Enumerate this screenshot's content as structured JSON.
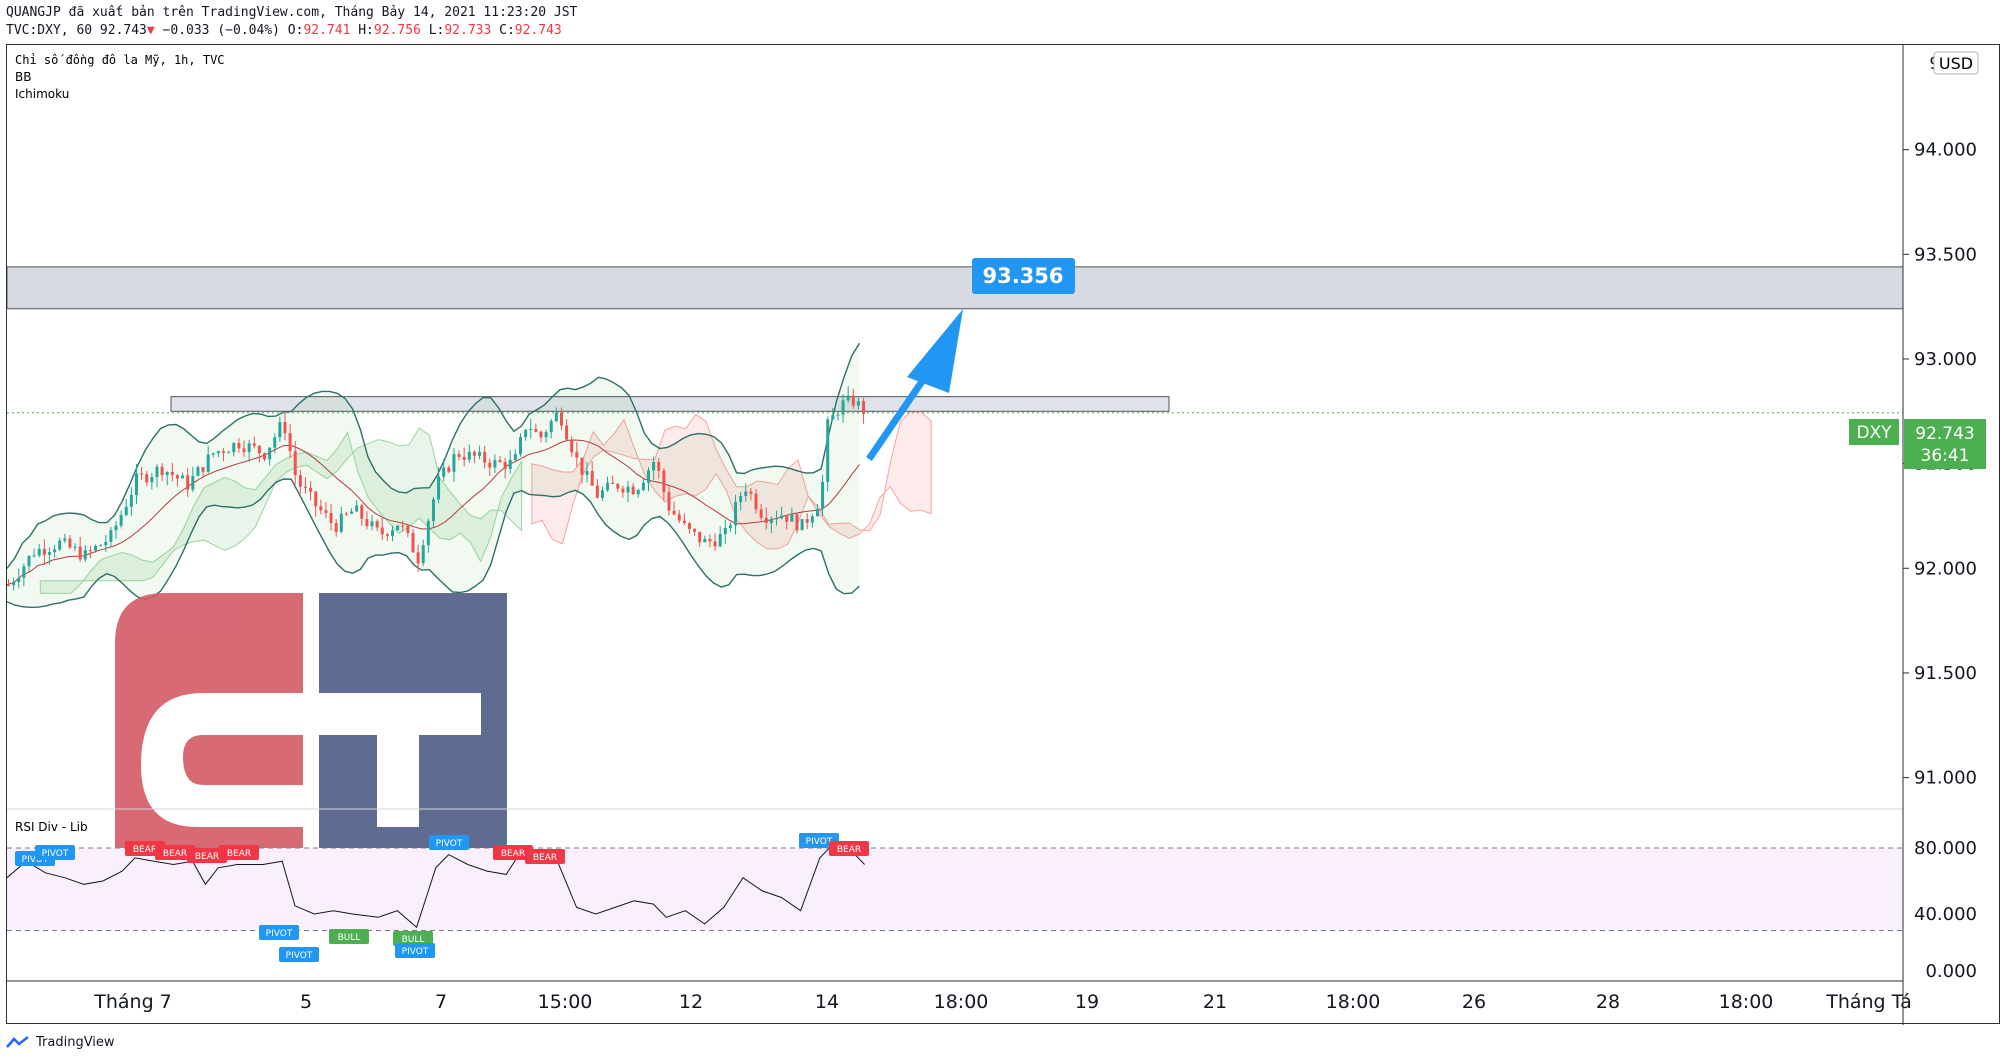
{
  "header": {
    "publish_line": "QUANGJP đã xuất bản trên TradingView.com, Tháng Bảy 14, 2021 11:23:20 JST",
    "symbol_prefix": "TVC:DXY, 60 92.743",
    "arrow": "▼",
    "change": "−0.033 (−0.04%)",
    "o_label": "O:",
    "o_value": "92.741",
    "h_label": "H:",
    "h_value": "92.756",
    "l_label": "L:",
    "l_value": "92.733",
    "c_label": "C:",
    "c_value": "92.743"
  },
  "legend": {
    "title": "Chỉ số đồng đô la Mỹ, 1h, TVC",
    "indicator1": "BB",
    "indicator2": "Ichimoku"
  },
  "price_axis": {
    "currency": "USD",
    "top_partial": "94",
    "ticks": [
      "94.000",
      "93.500",
      "93.000",
      "92.500",
      "92.000",
      "91.500",
      "91.000"
    ],
    "current_symbol": "DXY",
    "current_price": "92.743",
    "countdown": "36:41"
  },
  "target_label": "93.356",
  "rsi_panel": {
    "title": "RSI Div - Lib",
    "ticks": [
      "80.000",
      "40.000",
      "0.000"
    ],
    "labels": [
      {
        "text": "PIVOT",
        "kind": "pivot"
      },
      {
        "text": "PIVOT",
        "kind": "pivot"
      },
      {
        "text": "BEAR",
        "kind": "bear"
      },
      {
        "text": "BEAR",
        "kind": "bear"
      },
      {
        "text": "BEAR",
        "kind": "bear"
      },
      {
        "text": "BEAR",
        "kind": "bear"
      },
      {
        "text": "PIVOT",
        "kind": "pivot"
      },
      {
        "text": "PIVOT",
        "kind": "pivot"
      },
      {
        "text": "BULL",
        "kind": "bull"
      },
      {
        "text": "BULL",
        "kind": "bull"
      },
      {
        "text": "PIVOT",
        "kind": "pivot"
      },
      {
        "text": "PIVOT",
        "kind": "pivot"
      },
      {
        "text": "BEAR",
        "kind": "bear"
      },
      {
        "text": "BEAR",
        "kind": "bear"
      },
      {
        "text": "PIVOT",
        "kind": "pivot"
      },
      {
        "text": "BEAR",
        "kind": "bear"
      }
    ]
  },
  "time_axis": {
    "ticks": [
      "Tháng 7",
      "5",
      "7",
      "15:00",
      "12",
      "14",
      "18:00",
      "19",
      "21",
      "18:00",
      "26",
      "28",
      "18:00",
      "Tháng Tá"
    ]
  },
  "footer": {
    "brand": "TradingView"
  },
  "colors": {
    "up": "#26a69a",
    "down": "#ef5350",
    "price_label": "#4caf50",
    "target": "#2196f3",
    "bb": "#2f6f6a",
    "rsi_band": "#f9f0fb",
    "watermark_red": "#d45a66",
    "watermark_navy": "#4e5b85"
  },
  "chart_data": {
    "type": "line",
    "symbol": "TVC:DXY",
    "interval": "60",
    "y_range": [
      90.85,
      94.5
    ],
    "last_price": 92.743,
    "resistance_zones": [
      [
        93.24,
        93.44
      ],
      [
        92.75,
        92.82
      ]
    ],
    "projection_target": 93.356,
    "price_path": [
      [
        0,
        91.92
      ],
      [
        20,
        92.08
      ],
      [
        40,
        92.12
      ],
      [
        60,
        92.06
      ],
      [
        80,
        92.15
      ],
      [
        100,
        92.42
      ],
      [
        120,
        92.48
      ],
      [
        140,
        92.4
      ],
      [
        160,
        92.55
      ],
      [
        180,
        92.6
      ],
      [
        200,
        92.55
      ],
      [
        215,
        92.7
      ],
      [
        225,
        92.42
      ],
      [
        240,
        92.3
      ],
      [
        255,
        92.2
      ],
      [
        270,
        92.28
      ],
      [
        290,
        92.16
      ],
      [
        305,
        92.22
      ],
      [
        320,
        92.05
      ],
      [
        335,
        92.4
      ],
      [
        350,
        92.55
      ],
      [
        365,
        92.53
      ],
      [
        380,
        92.5
      ],
      [
        395,
        92.5
      ],
      [
        405,
        92.7
      ],
      [
        415,
        92.62
      ],
      [
        430,
        92.75
      ],
      [
        445,
        92.5
      ],
      [
        460,
        92.35
      ],
      [
        475,
        92.4
      ],
      [
        490,
        92.38
      ],
      [
        505,
        92.52
      ],
      [
        515,
        92.3
      ],
      [
        530,
        92.18
      ],
      [
        545,
        92.12
      ],
      [
        560,
        92.16
      ],
      [
        575,
        92.4
      ],
      [
        590,
        92.25
      ],
      [
        605,
        92.26
      ],
      [
        620,
        92.2
      ],
      [
        635,
        92.34
      ],
      [
        640,
        92.68
      ],
      [
        650,
        92.78
      ],
      [
        660,
        92.8
      ],
      [
        670,
        92.743
      ]
    ],
    "rsi": {
      "levels": [
        80,
        30
      ],
      "y_range": [
        0,
        100
      ],
      "values": [
        [
          0,
          62
        ],
        [
          15,
          72
        ],
        [
          30,
          65
        ],
        [
          45,
          62
        ],
        [
          60,
          58
        ],
        [
          75,
          60
        ],
        [
          90,
          66
        ],
        [
          100,
          74
        ],
        [
          115,
          72
        ],
        [
          130,
          70
        ],
        [
          145,
          72
        ],
        [
          155,
          58
        ],
        [
          165,
          68
        ],
        [
          180,
          70
        ],
        [
          200,
          70
        ],
        [
          215,
          72
        ],
        [
          225,
          45
        ],
        [
          240,
          40
        ],
        [
          255,
          42
        ],
        [
          270,
          40
        ],
        [
          290,
          38
        ],
        [
          305,
          42
        ],
        [
          320,
          32
        ],
        [
          335,
          68
        ],
        [
          345,
          76
        ],
        [
          360,
          70
        ],
        [
          375,
          66
        ],
        [
          390,
          64
        ],
        [
          400,
          76
        ],
        [
          415,
          74
        ],
        [
          430,
          72
        ],
        [
          445,
          44
        ],
        [
          460,
          40
        ],
        [
          475,
          44
        ],
        [
          490,
          48
        ],
        [
          505,
          46
        ],
        [
          515,
          38
        ],
        [
          530,
          42
        ],
        [
          545,
          34
        ],
        [
          560,
          44
        ],
        [
          575,
          62
        ],
        [
          590,
          54
        ],
        [
          605,
          50
        ],
        [
          620,
          42
        ],
        [
          635,
          74
        ],
        [
          645,
          82
        ],
        [
          660,
          78
        ],
        [
          670,
          70
        ]
      ]
    },
    "x_ticks": [
      "Tháng 7",
      "5",
      "7",
      "15:00",
      "12",
      "14",
      "18:00",
      "19",
      "21",
      "18:00",
      "26",
      "28",
      "18:00",
      "Tháng Tá"
    ],
    "y_ticks": [
      94.0,
      93.5,
      93.0,
      92.5,
      92.0,
      91.5,
      91.0
    ],
    "rsi_ticks": [
      80,
      40,
      0
    ]
  }
}
